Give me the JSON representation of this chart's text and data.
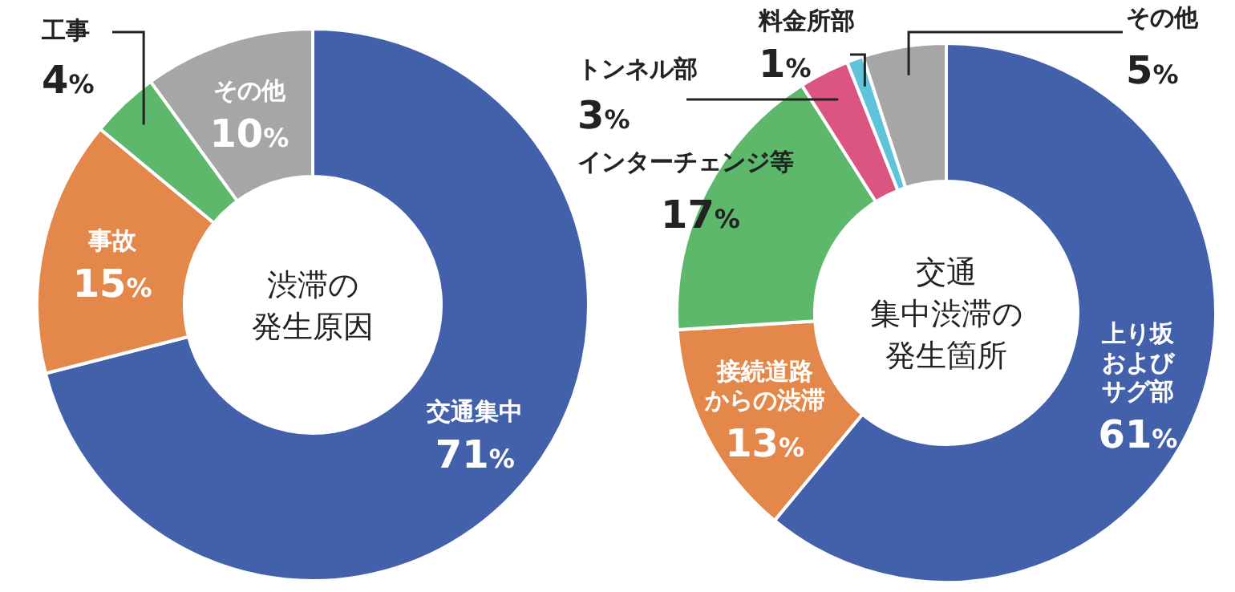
{
  "chart_data": [
    {
      "type": "donut",
      "title": "渋滞の発生原因",
      "categories": [
        "交通集中",
        "事故",
        "工事",
        "その他"
      ],
      "values": [
        71,
        15,
        4,
        10
      ],
      "value_labels": [
        "71%",
        "15%",
        "4%",
        "10%"
      ],
      "colors": [
        "#4361aa",
        "#e3874b",
        "#5db86b",
        "#a6a6a6"
      ]
    },
    {
      "type": "donut",
      "title": "交通集中渋滞の発生箇所",
      "categories": [
        "上り坂およびサグ部",
        "接続道路からの渋滞",
        "インターチェンジ等",
        "トンネル部",
        "料金所部",
        "その他"
      ],
      "values": [
        61,
        13,
        17,
        3,
        1,
        5
      ],
      "value_labels": [
        "61%",
        "13%",
        "17%",
        "3%",
        "1%",
        "5%"
      ],
      "colors": [
        "#4361aa",
        "#e3874b",
        "#5db86b",
        "#db5580",
        "#5fc3dc",
        "#a6a6a6"
      ]
    }
  ]
}
